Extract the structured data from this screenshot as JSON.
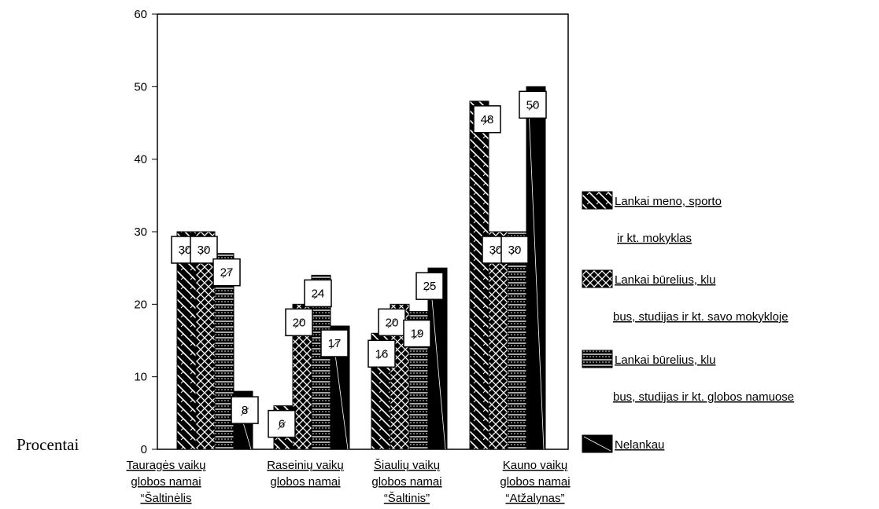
{
  "chart_data": {
    "type": "bar",
    "ylabel": "Procentai",
    "ylim": [
      0,
      60
    ],
    "yticks": [
      "0",
      "10",
      "20",
      "30",
      "40",
      "50",
      "60"
    ],
    "categories": [
      [
        "Tauragės vaikų",
        "globos namai",
        "“Šaltinėlis"
      ],
      [
        "Raseinių vaikų",
        "globos namai"
      ],
      [
        "Šiaulių vaikų",
        "globos namai",
        "“Šaltinis”"
      ],
      [
        "Kauno vaikų",
        "globos namai",
        "“Atžalynas”"
      ]
    ],
    "series": [
      {
        "name": [
          "Lankai meno, sporto",
          "ir kt. mokyklas"
        ],
        "values": [
          30,
          6,
          16,
          48
        ]
      },
      {
        "name": [
          "Lankai būrelius, klu",
          "bus, studijas ir kt. savo mokykloje"
        ],
        "values": [
          30,
          20,
          20,
          30
        ]
      },
      {
        "name": [
          "Lankai būrelius, klu",
          "bus, studijas ir kt. globos namuose"
        ],
        "values": [
          27,
          24,
          19,
          30
        ]
      },
      {
        "name": [
          "Nelankau"
        ],
        "values": [
          8,
          17,
          25,
          50
        ]
      }
    ],
    "legend_position": "right",
    "grid": false
  }
}
